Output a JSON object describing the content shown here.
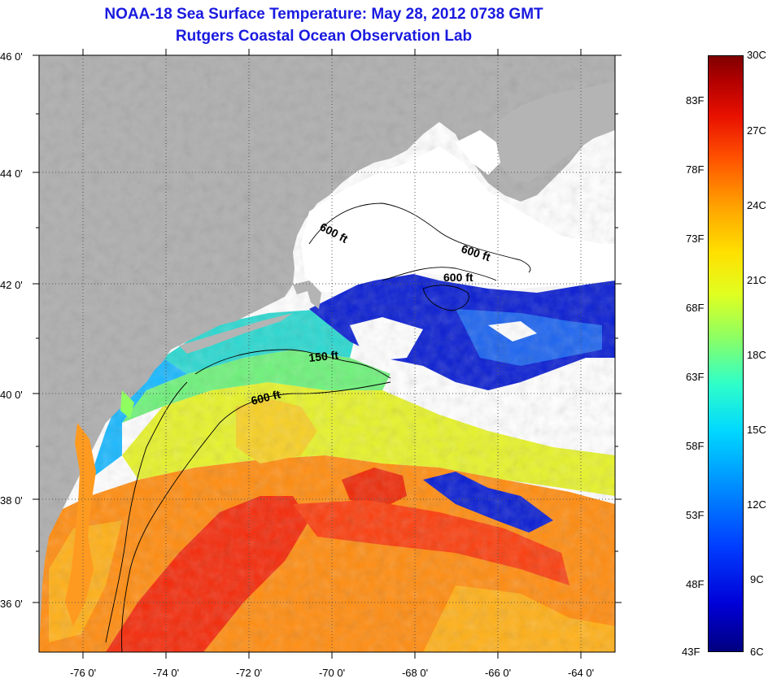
{
  "title": {
    "line1": "NOAA-18 Sea Surface Temperature:  May 28, 2012 0738 GMT",
    "line2": "Rutgers Coastal Ocean Observation Lab"
  },
  "map": {
    "lat_labels": [
      "46 0'",
      "44 0'",
      "42 0'",
      "40 0'",
      "38 0'",
      "36 0'"
    ],
    "lon_labels": [
      "-76 0'",
      "-74 0'",
      "-72 0'",
      "-70 0'",
      "-68 0'",
      "-66 0'",
      "-64 0'"
    ],
    "contour_labels": [
      "600 ft",
      "600 ft",
      "600 ft",
      "150 ft",
      "600 ft"
    ],
    "colors": {
      "land": "#b4b4b4",
      "cloud": "#ffffff",
      "cold": "#0a1ed2",
      "warm": "#ff5a14"
    }
  },
  "colorbar": {
    "min_label_f": "43F",
    "min_label_c": "6C",
    "max_label_c": "30C",
    "fahrenheit_labels": [
      "83F",
      "78F",
      "73F",
      "68F",
      "63F",
      "58F",
      "53F",
      "48F"
    ],
    "celsius_labels": [
      "27C",
      "24C",
      "21C",
      "18C",
      "15C",
      "12C",
      "9C"
    ]
  }
}
